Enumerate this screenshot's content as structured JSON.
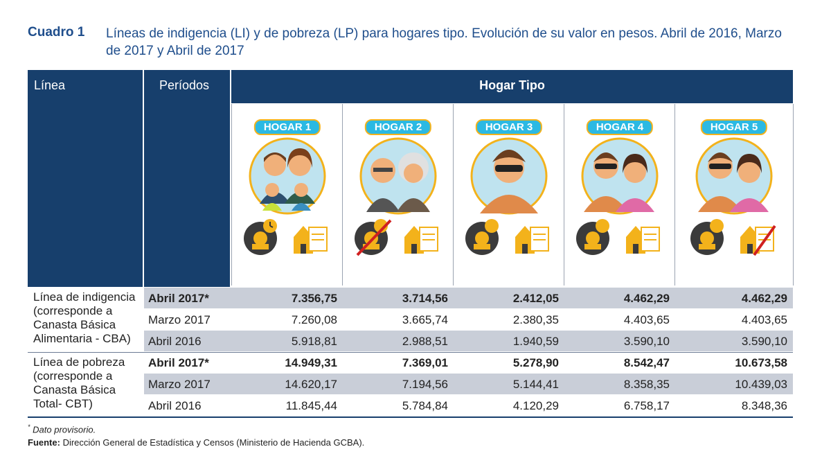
{
  "caption": {
    "label": "Cuadro 1",
    "text": "Líneas de indigencia (LI) y de pobreza (LP) para hogares tipo. Evolución de su valor en pesos. Abril de 2016, Marzo de 2017 y Abril de 2017"
  },
  "header": {
    "linea": "Línea",
    "periodos": "Períodos",
    "hogar_tipo": "Hogar Tipo"
  },
  "hogares": [
    {
      "label": "HOGAR 1"
    },
    {
      "label": "HOGAR 2"
    },
    {
      "label": "HOGAR 3"
    },
    {
      "label": "HOGAR 4"
    },
    {
      "label": "HOGAR 5"
    }
  ],
  "groups": [
    {
      "label": "Línea de indigencia (corresponde a Canasta Básica Alimentaria - CBA)",
      "rows": [
        {
          "period": "Abril 2017*",
          "values": [
            "7.356,75",
            "3.714,56",
            "2.412,05",
            "4.462,29",
            "4.462,29"
          ]
        },
        {
          "period": "Marzo 2017",
          "values": [
            "7.260,08",
            "3.665,74",
            "2.380,35",
            "4.403,65",
            "4.403,65"
          ]
        },
        {
          "period": "Abril 2016",
          "values": [
            "5.918,81",
            "2.988,51",
            "1.940,59",
            "3.590,10",
            "3.590,10"
          ]
        }
      ]
    },
    {
      "label": "Línea de pobreza (corresponde a Canasta Básica Total- CBT)",
      "rows": [
        {
          "period": "Abril 2017*",
          "values": [
            "14.949,31",
            "7.369,01",
            "5.278,90",
            "8.542,47",
            "10.673,58"
          ]
        },
        {
          "period": "Marzo 2017",
          "values": [
            "14.620,17",
            "7.194,56",
            "5.144,41",
            "8.358,35",
            "10.439,03"
          ]
        },
        {
          "period": "Abril 2016",
          "values": [
            "11.845,44",
            "5.784,84",
            "4.120,29",
            "6.758,17",
            "8.348,36"
          ]
        }
      ]
    }
  ],
  "footnote": "Dato provisorio.",
  "source": {
    "label": "Fuente:",
    "text": "Dirección General de Estadística y Censos (Ministerio de Hacienda GCBA)."
  },
  "colors": {
    "header": "#173f6c",
    "shade": "#c9ced8",
    "pill": "#2bb9e3",
    "accent": "#f3b21b"
  }
}
